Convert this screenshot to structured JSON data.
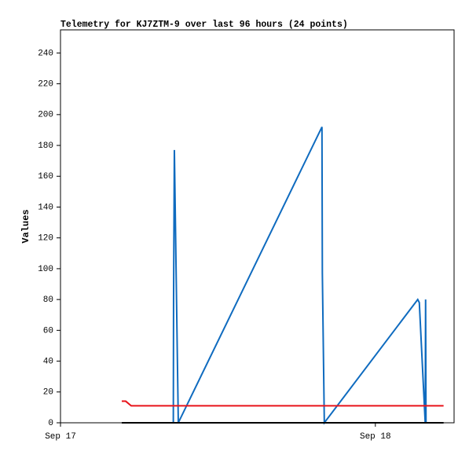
{
  "chart_data": {
    "type": "line",
    "title": "Telemetry for KJ7ZTM-9 over last 96 hours (24 points)",
    "y_label": "Values",
    "xlim": [
      0,
      30
    ],
    "xticks": [
      {
        "value": 0,
        "label": "Sep 17"
      },
      {
        "value": 24,
        "label": "Sep 18"
      }
    ],
    "ylim": [
      0,
      255
    ],
    "yticks": [
      0,
      20,
      40,
      60,
      80,
      100,
      120,
      140,
      160,
      180,
      200,
      220,
      240
    ],
    "grid": false,
    "series": [
      {
        "color": "#0f6bbf",
        "x": [
          8.6,
          8.62,
          8.68,
          8.98,
          19.93,
          19.96,
          20.11,
          27.23,
          27.35,
          27.8,
          27.83,
          27.86
        ],
        "values": [
          0,
          80,
          177,
          0,
          192,
          97,
          0,
          80,
          78,
          0,
          80,
          0
        ]
      },
      {
        "color": "#e8141b",
        "x": [
          4.67,
          4.97,
          5.39,
          29.2
        ],
        "values": [
          14,
          14,
          11,
          11
        ]
      },
      {
        "color": "#000000",
        "x": [
          4.67,
          29.2
        ],
        "values": [
          0,
          0
        ]
      }
    ]
  }
}
